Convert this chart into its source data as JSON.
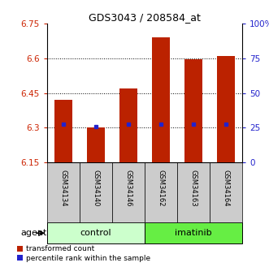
{
  "title": "GDS3043 / 208584_at",
  "samples": [
    "GSM34134",
    "GSM34140",
    "GSM34146",
    "GSM34162",
    "GSM34163",
    "GSM34164"
  ],
  "groups": [
    "control",
    "control",
    "control",
    "imatinib",
    "imatinib",
    "imatinib"
  ],
  "bar_bottoms": [
    6.15,
    6.15,
    6.15,
    6.15,
    6.15,
    6.15
  ],
  "bar_tops": [
    6.42,
    6.3,
    6.47,
    6.69,
    6.595,
    6.61
  ],
  "percentile_values": [
    6.315,
    6.305,
    6.315,
    6.315,
    6.315,
    6.315
  ],
  "ylim_left": [
    6.15,
    6.75
  ],
  "yticks_left": [
    6.15,
    6.3,
    6.45,
    6.6,
    6.75
  ],
  "ytick_labels_left": [
    "6.15",
    "6.3",
    "6.45",
    "6.6",
    "6.75"
  ],
  "ylim_right": [
    0,
    100
  ],
  "yticks_right": [
    0,
    25,
    50,
    75,
    100
  ],
  "ytick_labels_right": [
    "0",
    "25",
    "50",
    "75",
    "100%"
  ],
  "bar_color": "#bb2200",
  "percentile_color": "#2222cc",
  "control_color": "#ccffcc",
  "imatinib_color": "#66ee44",
  "title_color": "#000000",
  "left_tick_color": "#cc2200",
  "right_tick_color": "#2222cc",
  "gridline_color": "#000000",
  "bar_width": 0.55,
  "sample_box_color": "#cccccc",
  "agent_text": "agent"
}
